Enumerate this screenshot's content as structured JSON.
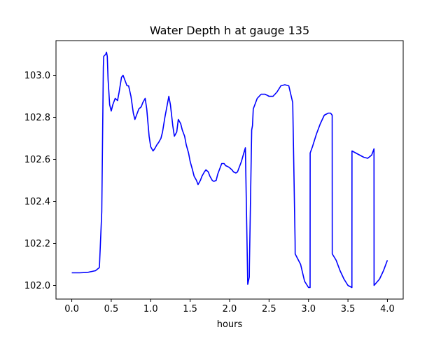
{
  "chart_data": {
    "type": "line",
    "title": "Water Depth h at gauge 135",
    "xlabel": "hours",
    "ylabel": "",
    "xlim": [
      -0.2,
      4.2
    ],
    "ylim": [
      101.935,
      103.165
    ],
    "xticks": [
      0.0,
      0.5,
      1.0,
      1.5,
      2.0,
      2.5,
      3.0,
      3.5,
      4.0
    ],
    "xtick_labels": [
      "0.0",
      "0.5",
      "1.0",
      "1.5",
      "2.0",
      "2.5",
      "3.0",
      "3.5",
      "4.0"
    ],
    "yticks": [
      102.0,
      102.2,
      102.4,
      102.6,
      102.8,
      103.0
    ],
    "ytick_labels": [
      "102.0",
      "102.2",
      "102.4",
      "102.6",
      "102.8",
      "103.0"
    ],
    "grid": false,
    "series": [
      {
        "color": "#0000ff",
        "x": [
          0.0,
          0.1,
          0.2,
          0.3,
          0.35,
          0.38,
          0.4,
          0.405,
          0.43,
          0.44,
          0.45,
          0.46,
          0.48,
          0.5,
          0.52,
          0.55,
          0.58,
          0.6,
          0.63,
          0.65,
          0.67,
          0.7,
          0.72,
          0.75,
          0.78,
          0.8,
          0.83,
          0.85,
          0.88,
          0.9,
          0.93,
          0.95,
          0.98,
          1.0,
          1.03,
          1.05,
          1.08,
          1.1,
          1.13,
          1.15,
          1.18,
          1.2,
          1.23,
          1.25,
          1.28,
          1.3,
          1.33,
          1.35,
          1.38,
          1.4,
          1.43,
          1.45,
          1.48,
          1.5,
          1.53,
          1.55,
          1.58,
          1.6,
          1.63,
          1.65,
          1.68,
          1.7,
          1.73,
          1.75,
          1.78,
          1.8,
          1.83,
          1.85,
          1.88,
          1.9,
          1.93,
          1.95,
          1.98,
          2.0,
          2.03,
          2.05,
          2.08,
          2.1,
          2.13,
          2.15,
          2.18,
          2.2,
          2.23,
          2.25,
          2.251,
          2.28,
          2.29,
          2.3,
          2.35,
          2.4,
          2.45,
          2.5,
          2.55,
          2.6,
          2.65,
          2.7,
          2.75,
          2.8,
          2.83,
          2.831,
          2.9,
          2.95,
          3.0,
          3.02,
          3.021,
          3.05,
          3.1,
          3.15,
          3.2,
          3.25,
          3.28,
          3.3,
          3.301,
          3.35,
          3.4,
          3.45,
          3.5,
          3.55,
          3.551,
          3.6,
          3.65,
          3.7,
          3.75,
          3.8,
          3.83,
          3.831,
          3.9,
          3.95,
          4.0
        ],
        "values": [
          102.06,
          102.06,
          102.062,
          102.07,
          102.085,
          102.35,
          103.04,
          103.09,
          103.1,
          103.11,
          103.09,
          102.98,
          102.86,
          102.83,
          102.86,
          102.89,
          102.88,
          102.92,
          102.99,
          103.0,
          102.98,
          102.95,
          102.95,
          102.9,
          102.82,
          102.79,
          102.82,
          102.84,
          102.85,
          102.87,
          102.89,
          102.84,
          102.71,
          102.66,
          102.64,
          102.65,
          102.67,
          102.68,
          102.7,
          102.73,
          102.8,
          102.84,
          102.9,
          102.86,
          102.76,
          102.71,
          102.73,
          102.79,
          102.77,
          102.74,
          102.71,
          102.67,
          102.63,
          102.59,
          102.55,
          102.52,
          102.5,
          102.48,
          102.5,
          102.52,
          102.54,
          102.55,
          102.54,
          102.52,
          102.5,
          102.495,
          102.5,
          102.53,
          102.56,
          102.58,
          102.58,
          102.57,
          102.565,
          102.56,
          102.55,
          102.54,
          102.535,
          102.54,
          102.57,
          102.59,
          102.63,
          102.655,
          102.005,
          102.04,
          102.09,
          102.74,
          102.76,
          102.84,
          102.89,
          102.91,
          102.91,
          102.9,
          102.9,
          102.92,
          102.95,
          102.955,
          102.95,
          102.87,
          102.21,
          102.15,
          102.1,
          102.02,
          101.99,
          101.99,
          102.63,
          102.66,
          102.72,
          102.77,
          102.81,
          102.82,
          102.82,
          102.81,
          102.15,
          102.12,
          102.07,
          102.03,
          102.0,
          101.99,
          102.64,
          102.63,
          102.62,
          102.61,
          102.605,
          102.62,
          102.65,
          102.0,
          102.03,
          102.07,
          102.12
        ]
      }
    ]
  }
}
